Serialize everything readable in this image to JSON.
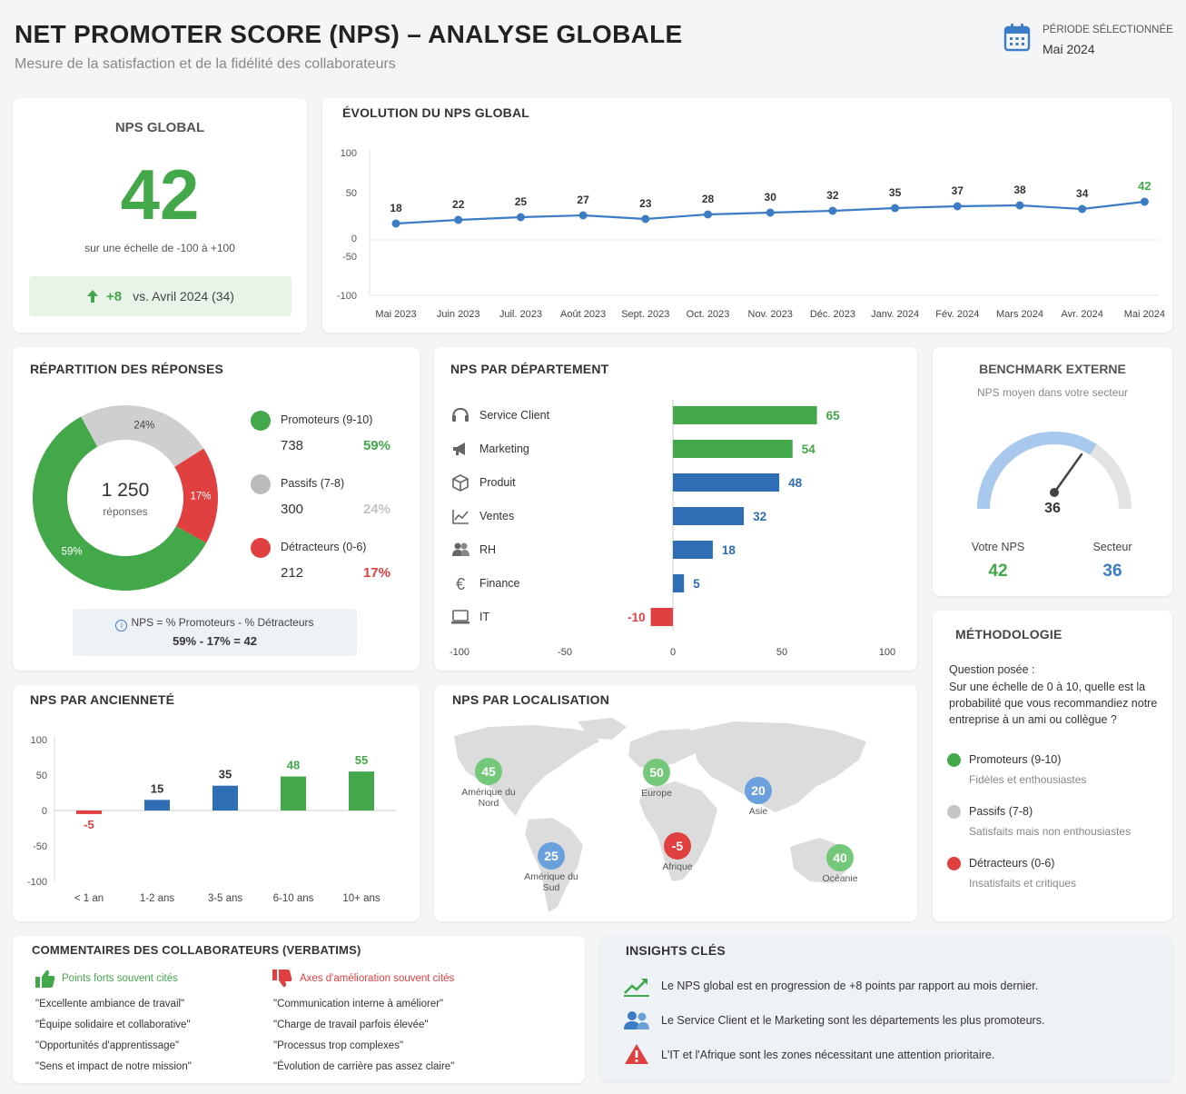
{
  "header": {
    "title": "NET PROMOTER SCORE (NPS) – ANALYSE GLOBALE",
    "subtitle": "Mesure de la satisfaction et de la fidélité des collaborateurs",
    "period_label": "PÉRIODE SÉLECTIONNÉE",
    "period_value": "Mai 2024"
  },
  "colors": {
    "promoter": "#43a84a",
    "passive": "#cfcfcf",
    "detractor": "#e04040",
    "blue": "#2f6db5",
    "line": "#3b7cc4"
  },
  "nps_global": {
    "title": "NPS GLOBAL",
    "value": "42",
    "scale": "sur une échelle de -100 à +100",
    "delta": "+8",
    "delta_text": "vs. Avril 2024 (34)"
  },
  "evolution": {
    "title": "ÉVOLUTION DU NPS GLOBAL"
  },
  "repartition": {
    "title": "RÉPARTITION DES RÉPONSES",
    "total": "1 250",
    "total_label": "réponses",
    "items": [
      {
        "label": "Promoteurs (9-10)",
        "count": "738",
        "pct": "59%"
      },
      {
        "label": "Passifs (7-8)",
        "count": "300",
        "pct": "24%"
      },
      {
        "label": "Détracteurs (0-6)",
        "count": "212",
        "pct": "17%"
      }
    ],
    "formula": "NPS = % Promoteurs - % Détracteurs",
    "formula_calc": "59% - 17% = 42"
  },
  "departement": {
    "title": "NPS PAR DÉPARTEMENT"
  },
  "benchmark": {
    "title": "BENCHMARK EXTERNE",
    "subtitle": "NPS moyen dans votre secteur",
    "gauge_value": "36",
    "yours_label": "Votre NPS",
    "yours_value": "42",
    "sector_label": "Secteur",
    "sector_value": "36"
  },
  "anciennete": {
    "title": "NPS PAR ANCIENNETÉ"
  },
  "localisation": {
    "title": "NPS PAR LOCALISATION",
    "regions": [
      {
        "name": "Amérique du Nord",
        "value": "45"
      },
      {
        "name": "Europe",
        "value": "50"
      },
      {
        "name": "Asie",
        "value": "20"
      },
      {
        "name": "Amérique du Sud",
        "value": "25"
      },
      {
        "name": "Afrique",
        "value": "-5"
      },
      {
        "name": "Océanie",
        "value": "40"
      }
    ]
  },
  "methodologie": {
    "title": "MÉTHODOLOGIE",
    "question_label": "Question posée :",
    "question": "Sur une échelle de 0 à 10, quelle est la probabilité que vous recommandiez notre entreprise à un ami ou collègue ?",
    "items": [
      {
        "label": "Promoteurs (9-10)",
        "desc": "Fidèles et enthousiastes"
      },
      {
        "label": "Passifs (7-8)",
        "desc": "Satisfaits mais non enthousiastes"
      },
      {
        "label": "Détracteurs (0-6)",
        "desc": "Insatisfaits et critiques"
      }
    ]
  },
  "verbatims": {
    "title": "COMMENTAIRES DES COLLABORATEURS (VERBATIMS)",
    "positive_title": "Points forts souvent cités",
    "positive": [
      "\"Excellente ambiance de travail\"",
      "\"Équipe solidaire et collaborative\"",
      "\"Opportunités d'apprentissage\"",
      "\"Sens et impact de notre mission\""
    ],
    "negative_title": "Axes d'amélioration souvent cités",
    "negative": [
      "\"Communication interne à améliorer\"",
      "\"Charge de travail parfois élevée\"",
      "\"Processus trop complexes\"",
      "\"Évolution de carrière pas assez claire\""
    ]
  },
  "insights": {
    "title": "INSIGHTS CLÉS",
    "items": [
      "Le NPS global est en progression de +8 points par rapport au mois dernier.",
      "Le Service Client et le Marketing sont les départements les plus promoteurs.",
      "L'IT et l'Afrique sont les zones nécessitant une attention prioritaire."
    ]
  },
  "chart_data": [
    {
      "type": "line",
      "title": "ÉVOLUTION DU NPS GLOBAL",
      "categories": [
        "Mai 2023",
        "Juin 2023",
        "Juil. 2023",
        "Août 2023",
        "Sept. 2023",
        "Oct. 2023",
        "Nov. 2023",
        "Déc. 2023",
        "Janv. 2024",
        "Fév. 2024",
        "Mars 2024",
        "Avr. 2024",
        "Mai 2024"
      ],
      "values": [
        18,
        22,
        25,
        27,
        23,
        28,
        30,
        32,
        35,
        37,
        38,
        34,
        42
      ],
      "yticks": [
        100,
        50,
        0,
        -50,
        -100
      ],
      "ylim": [
        -100,
        100
      ]
    },
    {
      "type": "pie",
      "title": "RÉPARTITION DES RÉPONSES",
      "categories": [
        "Promoteurs (9-10)",
        "Passifs (7-8)",
        "Détracteurs (0-6)"
      ],
      "values": [
        59,
        24,
        17
      ],
      "labels": [
        "59%",
        "24%",
        "17%"
      ]
    },
    {
      "type": "bar",
      "title": "NPS PAR DÉPARTEMENT",
      "categories": [
        "Service Client",
        "Marketing",
        "Produit",
        "Ventes",
        "RH",
        "Finance",
        "IT"
      ],
      "values": [
        65,
        54,
        48,
        32,
        18,
        5,
        -10
      ],
      "xticks": [
        "-100",
        "-50",
        "0",
        "50",
        "100"
      ],
      "xlim": [
        -100,
        100
      ]
    },
    {
      "type": "bar",
      "title": "NPS PAR ANCIENNETÉ",
      "categories": [
        "< 1 an",
        "1-2 ans",
        "3-5 ans",
        "6-10 ans",
        "10+ ans"
      ],
      "values": [
        -5,
        15,
        35,
        48,
        55
      ],
      "yticks": [
        100,
        50,
        0,
        -50,
        -100
      ],
      "ylim": [
        -100,
        100
      ]
    }
  ]
}
